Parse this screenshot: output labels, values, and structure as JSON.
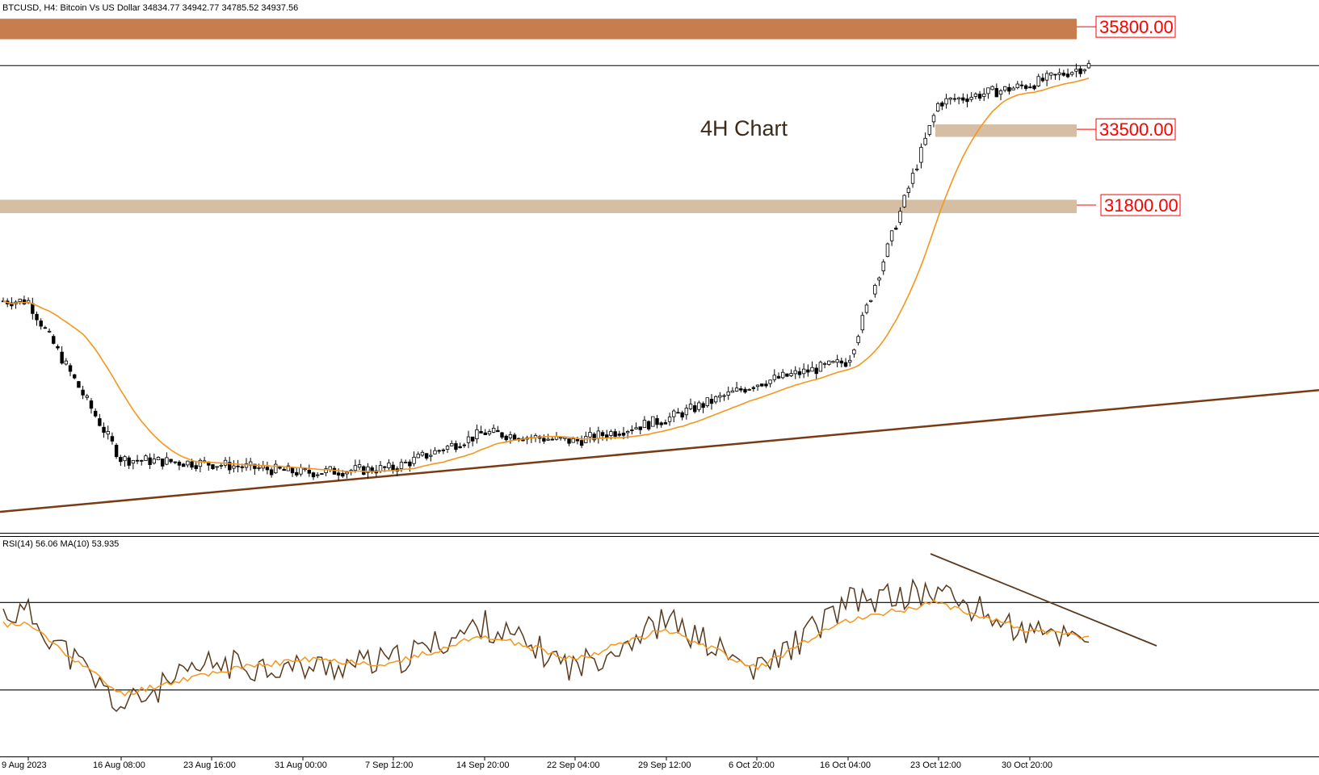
{
  "header": {
    "symbol_line": "BTCUSD, H4:  Bitcoin Vs US Dollar  34834.77  34942.77  34785.52  34937.56"
  },
  "annotation": "4H Chart",
  "levels": [
    {
      "label": "35800.00",
      "price": 35800,
      "zone": [
        35520,
        35980
      ],
      "zone_color": "#c87d4e",
      "zone_start": "9 Aug 2023"
    },
    {
      "label": "33500.00",
      "price": 33500,
      "zone": [
        33330,
        33610
      ],
      "zone_color": "#d5bea3",
      "zone_start": "23 Oct 12:00"
    },
    {
      "label": "31800.00",
      "price": 31800,
      "zone": [
        31620,
        31920
      ],
      "zone_color": "#d5bea3",
      "zone_start": "9 Aug 2023"
    }
  ],
  "current_price": 34937.56,
  "rsi": {
    "header": "RSI(14) 56.06 MA(10) 53.935",
    "period": 14,
    "value": 56.06,
    "ma_period": 10,
    "ma_value": 53.935,
    "upper": 70,
    "lower": 30
  },
  "x_axis_labels": [
    "9 Aug 2023",
    "16 Aug 08:00",
    "23 Aug 16:00",
    "31 Aug 00:00",
    "7 Sep 12:00",
    "14 Sep 20:00",
    "22 Sep 04:00",
    "29 Sep 12:00",
    "6 Oct 20:00",
    "16 Oct 04:00",
    "23 Oct 12:00",
    "30 Oct 20:00"
  ],
  "colors": {
    "candle": "#000000",
    "ma": "#f5961e",
    "trendline": "#7a3b14",
    "rsi_line": "#5a3a1e",
    "rsi_ma": "#f5961e",
    "level_text": "#ff0000"
  },
  "chart_data": [
    {
      "type": "line",
      "title": "BTCUSD, H4",
      "series": [
        {
          "name": "BTCUSD",
          "x": [
            "9 Aug 2023",
            "16 Aug 08:00",
            "23 Aug 16:00",
            "31 Aug 00:00",
            "7 Sep 12:00",
            "14 Sep 20:00",
            "22 Sep 04:00",
            "29 Sep 12:00",
            "6 Oct 20:00",
            "16 Oct 04:00",
            "23 Oct 12:00",
            "30 Oct 20:00",
            "1 Nov 16:00"
          ],
          "values": [
            29650,
            26100,
            26000,
            25800,
            25900,
            26700,
            26500,
            27000,
            27800,
            28300,
            34100,
            34500,
            34937
          ]
        },
        {
          "name": "Trendline",
          "x": [
            "9 Aug 2023",
            "6 Nov 2023"
          ],
          "values": [
            24920,
            27650
          ]
        }
      ],
      "levels": [
        35800,
        33500,
        31800
      ],
      "ylim": [
        24450,
        36400
      ]
    },
    {
      "type": "line",
      "title": "RSI(14) 56.06 MA(10) 53.935",
      "series": [
        {
          "name": "RSI(14)",
          "x": [
            "9 Aug 2023",
            "16 Aug 08:00",
            "23 Aug 16:00",
            "31 Aug 00:00",
            "7 Sep 12:00",
            "14 Sep 20:00",
            "22 Sep 04:00",
            "29 Sep 12:00",
            "6 Oct 20:00",
            "16 Oct 04:00",
            "23 Oct 12:00",
            "30 Oct 20:00",
            "1 Nov 16:00"
          ],
          "values": [
            65,
            22,
            42,
            40,
            43,
            60,
            40,
            62,
            38,
            70,
            75,
            55,
            56
          ]
        },
        {
          "name": "MA(10)",
          "x": [
            "9 Aug 2023",
            "16 Aug 08:00",
            "23 Aug 16:00",
            "31 Aug 00:00",
            "7 Sep 12:00",
            "14 Sep 20:00",
            "22 Sep 04:00",
            "29 Sep 12:00",
            "6 Oct 20:00",
            "16 Oct 04:00",
            "23 Oct 12:00",
            "30 Oct 20:00",
            "1 Nov 16:00"
          ],
          "values": [
            60,
            28,
            38,
            44,
            42,
            55,
            44,
            58,
            40,
            62,
            70,
            57,
            54
          ]
        }
      ],
      "levels": [
        70,
        30
      ],
      "ylim": [
        0,
        100
      ]
    }
  ]
}
